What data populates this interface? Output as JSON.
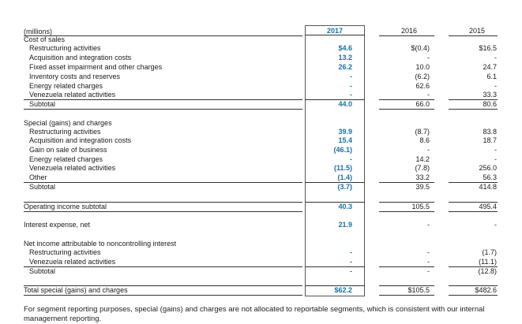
{
  "header": {
    "units": "(millions)",
    "years": [
      "2017",
      "2016",
      "2015"
    ]
  },
  "sections": [
    {
      "title": "Cost of sales",
      "rows": [
        {
          "label": "Restructuring activities",
          "v2017": "$4.6",
          "v2016": "$(0.4)",
          "v2015": "$16.5"
        },
        {
          "label": "Acquisition and integration costs",
          "v2017": "13.2",
          "v2016": "-",
          "v2015": "-"
        },
        {
          "label": "Fixed asset impairment and other charges",
          "v2017": "26.2",
          "v2016": "10.0",
          "v2015": "24.7"
        },
        {
          "label": "Inventory costs and reserves",
          "v2017": "-",
          "v2016": "(6.2)",
          "v2015": "6.1"
        },
        {
          "label": "Energy related charges",
          "v2017": "-",
          "v2016": "62.6",
          "v2015": "-"
        },
        {
          "label": "Venezuela related activities",
          "v2017": "-",
          "v2016": "-",
          "v2015": "33.3"
        }
      ],
      "subtotal": {
        "label": "Subtotal",
        "v2017": "44.0",
        "v2016": "66.0",
        "v2015": "80.6"
      }
    },
    {
      "title": "Special (gains) and charges",
      "rows": [
        {
          "label": "Restructuring activities",
          "v2017": "39.9",
          "v2016": "(8.7)",
          "v2015": "83.8"
        },
        {
          "label": "Acquisition and integration costs",
          "v2017": "15.4",
          "v2016": "8.6",
          "v2015": "18.7"
        },
        {
          "label": "Gain on sale of business",
          "v2017": "(46.1)",
          "v2016": "-",
          "v2015": "-"
        },
        {
          "label": "Energy related charges",
          "v2017": "-",
          "v2016": "14.2",
          "v2015": "-"
        },
        {
          "label": "Venezuela related activities",
          "v2017": "(11.5)",
          "v2016": "(7.8)",
          "v2015": "256.0"
        },
        {
          "label": "Other",
          "v2017": "(1.4)",
          "v2016": "33.2",
          "v2015": "56.3"
        }
      ],
      "subtotal": {
        "label": "Subtotal",
        "v2017": "(3.7)",
        "v2016": "39.5",
        "v2015": "414.8"
      }
    }
  ],
  "operating": {
    "label": "Operating income subtotal",
    "v2017": "40.3",
    "v2016": "105.5",
    "v2015": "495.4"
  },
  "interest": {
    "label": "Interest expense, net",
    "v2017": "21.9",
    "v2016": "-",
    "v2015": "-"
  },
  "nci": {
    "title": "Net income attributable to noncontrolling interest",
    "rows": [
      {
        "label": "Restructuring activities",
        "v2017": "-",
        "v2016": "-",
        "v2015": "(1.7)"
      },
      {
        "label": "Venezuela related activities",
        "v2017": "-",
        "v2016": "-",
        "v2015": "(11.1)"
      }
    ],
    "subtotal": {
      "label": "Subtotal",
      "v2017": "-",
      "v2016": "-",
      "v2015": "(12.8)"
    }
  },
  "total": {
    "label": "Total special (gains) and charges",
    "v2017": "$62.2",
    "v2016": "$105.5",
    "v2015": "$482.6"
  },
  "footnote": "For segment reporting purposes, special (gains) and charges are not allocated to reportable segments, which is consistent with our internal management reporting."
}
